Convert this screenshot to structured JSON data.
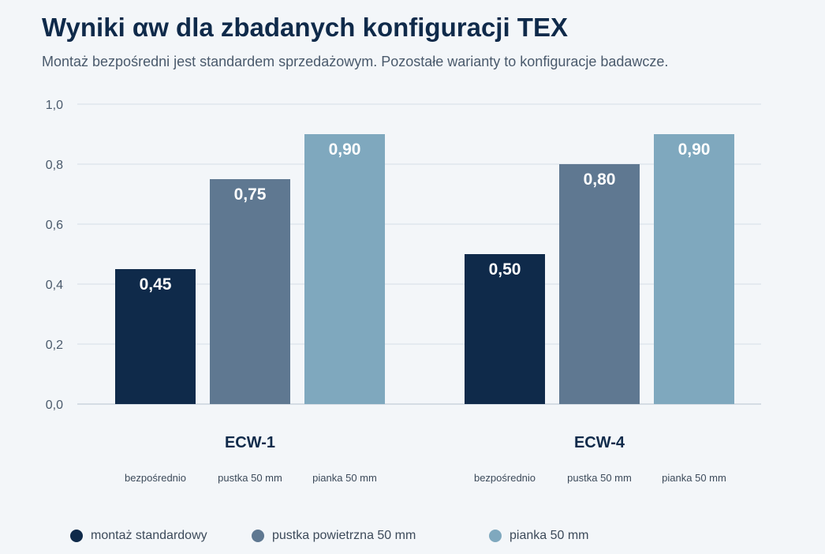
{
  "title": "Wyniki αw dla zbadanych konfiguracji TEX",
  "subtitle": "Montaż bezpośredni jest standardem sprzedażowym. Pozostałe warianty to konfiguracje badawcze.",
  "chart_data": {
    "type": "bar",
    "ylim": [
      0,
      1.0
    ],
    "yticks": [
      "0,0",
      "0,2",
      "0,4",
      "0,6",
      "0,8",
      "1,0"
    ],
    "ytick_values": [
      0,
      0.2,
      0.4,
      0.6,
      0.8,
      1.0
    ],
    "grid": true,
    "legend_position": "bottom",
    "categories": [
      "ECW-1",
      "ECW-4"
    ],
    "bar_labels": [
      "bezpośrednio",
      "pustka 50 mm",
      "pianka 50 mm"
    ],
    "series": [
      {
        "name": "montaż standardowy",
        "color": "#0f2a4a",
        "values": [
          0.45,
          0.5
        ],
        "labels": [
          "0,45",
          "0,50"
        ]
      },
      {
        "name": "pustka powietrzna 50 mm",
        "color": "#5f7891",
        "values": [
          0.75,
          0.8
        ],
        "labels": [
          "0,75",
          "0,80"
        ]
      },
      {
        "name": "pianka 50 mm",
        "color": "#7fa8be",
        "values": [
          0.9,
          0.9
        ],
        "labels": [
          "0,90",
          "0,90"
        ]
      }
    ]
  }
}
